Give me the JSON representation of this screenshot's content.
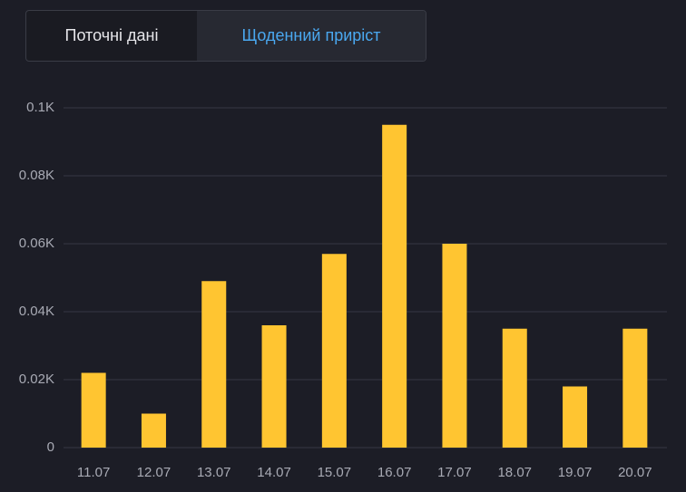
{
  "tabs": [
    "Поточні дані",
    "Щоденний приріст"
  ],
  "active_tab": 1,
  "chart_data": {
    "type": "bar",
    "categories": [
      "11.07",
      "12.07",
      "13.07",
      "14.07",
      "15.07",
      "16.07",
      "17.07",
      "18.07",
      "19.07",
      "20.07"
    ],
    "values": [
      22,
      10,
      49,
      36,
      57,
      95,
      60,
      35,
      18,
      35
    ],
    "color": "#ffc531",
    "ylim": [
      0,
      100
    ],
    "yticks": [
      0,
      {
        "value": 20,
        "label": "0.02K"
      },
      {
        "value": 40,
        "label": "0.04K"
      },
      {
        "value": 60,
        "label": "0.06K"
      },
      {
        "value": 80,
        "label": "0.08K"
      },
      {
        "value": 100,
        "label": "0.1K"
      }
    ],
    "grid": true
  }
}
